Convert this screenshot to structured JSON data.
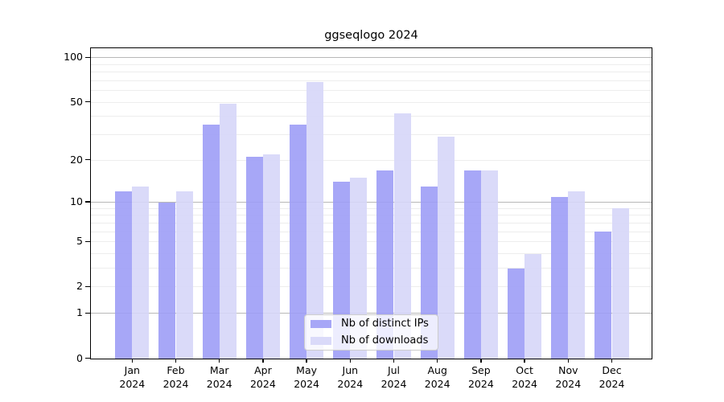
{
  "chart_data": {
    "type": "bar",
    "title": "ggseqlogo 2024",
    "year_label": "2024",
    "categories": [
      "Jan",
      "Feb",
      "Mar",
      "Apr",
      "May",
      "Jun",
      "Jul",
      "Aug",
      "Sep",
      "Oct",
      "Nov",
      "Dec"
    ],
    "series": [
      {
        "name": "Nb of distinct IPs",
        "color": "#9d9df6",
        "values": [
          12,
          10,
          35,
          21,
          35,
          14,
          17,
          13,
          17,
          3,
          11,
          6
        ]
      },
      {
        "name": "Nb of downloads",
        "color": "#d6d6f8",
        "values": [
          13,
          12,
          49,
          22,
          69,
          15,
          42,
          29,
          17,
          4,
          12,
          9
        ]
      }
    ],
    "y_ticks": [
      100,
      50,
      20,
      10,
      5,
      2,
      1,
      0
    ],
    "gridlines": {
      "major": [
        1,
        10,
        100
      ],
      "minor": [
        2,
        3,
        4,
        5,
        6,
        7,
        8,
        9,
        20,
        30,
        40,
        50,
        60,
        70,
        80,
        90
      ]
    },
    "scale": "log10(1+y)",
    "ylim": [
      0,
      115
    ],
    "grid": true,
    "legend_position": "lower center"
  },
  "colors": {
    "major_grid": "#b8b8b8",
    "minor_grid": "#ededed",
    "axis": "#000000",
    "legend_border": "#cccccc",
    "background": "#ffffff"
  }
}
